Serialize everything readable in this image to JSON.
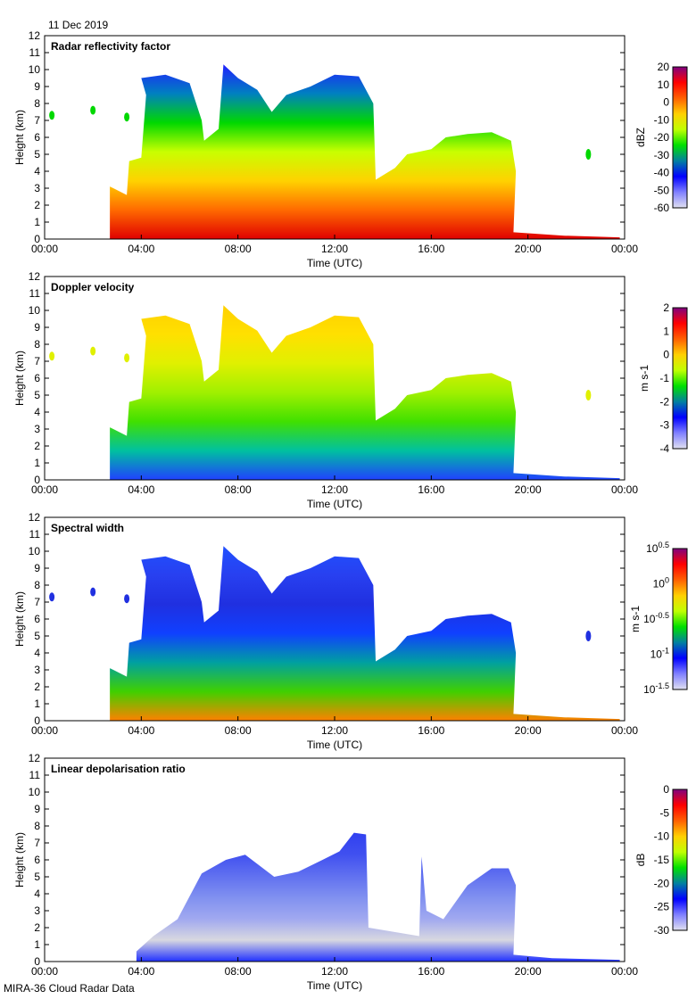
{
  "date": "11 Dec 2019",
  "footer": "MIRA-36 Cloud Radar Data",
  "chart_data": [
    {
      "type": "heatmap",
      "title": "Radar reflectivity factor",
      "xlabel": "Time (UTC)",
      "ylabel": "Height (km)",
      "xticks": [
        "00:00",
        "04:00",
        "08:00",
        "12:00",
        "16:00",
        "20:00",
        "00:00"
      ],
      "yticks": [
        "0",
        "1",
        "2",
        "3",
        "4",
        "5",
        "6",
        "7",
        "8",
        "9",
        "10",
        "11",
        "12"
      ],
      "ylim": [
        0,
        12
      ],
      "xlim": [
        0,
        24
      ],
      "colorbar": {
        "label": "dBZ",
        "ticks": [
          "20",
          "10",
          "0",
          "-10",
          "-20",
          "-30",
          "-40",
          "-50",
          "-60"
        ]
      },
      "colors": [
        "#e00000",
        "#ff6a00",
        "#ffd200",
        "#c8ff00",
        "#00d800",
        "#0080c0",
        "#2020ff"
      ]
    },
    {
      "type": "heatmap",
      "title": "Doppler velocity",
      "xlabel": "Time (UTC)",
      "ylabel": "Height (km)",
      "xticks": [
        "00:00",
        "04:00",
        "08:00",
        "12:00",
        "16:00",
        "20:00",
        "00:00"
      ],
      "yticks": [
        "0",
        "1",
        "2",
        "3",
        "4",
        "5",
        "6",
        "7",
        "8",
        "9",
        "10",
        "11",
        "12"
      ],
      "ylim": [
        0,
        12
      ],
      "xlim": [
        0,
        24
      ],
      "colorbar": {
        "label": "m s-1",
        "ticks": [
          "2",
          "1",
          "0",
          "-1",
          "-2",
          "-3",
          "-4"
        ]
      },
      "colors": [
        "#2040ff",
        "#00c0a0",
        "#40e000",
        "#a0f000",
        "#e0f000",
        "#ffe000",
        "#ffd000"
      ]
    },
    {
      "type": "heatmap",
      "title": "Spectral width",
      "xlabel": "Time (UTC)",
      "ylabel": "Height (km)",
      "xticks": [
        "00:00",
        "04:00",
        "08:00",
        "12:00",
        "16:00",
        "20:00",
        "00:00"
      ],
      "yticks": [
        "0",
        "1",
        "2",
        "3",
        "4",
        "5",
        "6",
        "7",
        "8",
        "9",
        "10",
        "11",
        "12"
      ],
      "ylim": [
        0,
        12
      ],
      "xlim": [
        0,
        24
      ],
      "colorbar": {
        "label": "m s-1",
        "ticks": [
          "10^0.5",
          "10^0",
          "10^-0.5",
          "10^-1",
          "10^-1.5"
        ]
      },
      "colors": [
        "#ff8000",
        "#40d000",
        "#00a0a0",
        "#1040ff",
        "#2030e0",
        "#2840f0",
        "#2050ff"
      ]
    },
    {
      "type": "heatmap",
      "title": "Linear depolarisation ratio",
      "xlabel": "Time (UTC)",
      "ylabel": "Height (km)",
      "xticks": [
        "00:00",
        "04:00",
        "08:00",
        "12:00",
        "16:00",
        "20:00",
        "00:00"
      ],
      "yticks": [
        "0",
        "1",
        "2",
        "3",
        "4",
        "5",
        "6",
        "7",
        "8",
        "9",
        "10",
        "11",
        "12"
      ],
      "ylim": [
        0,
        12
      ],
      "xlim": [
        0,
        24
      ],
      "colorbar": {
        "label": "dB",
        "ticks": [
          "0",
          "-5",
          "-10",
          "-15",
          "-20",
          "-25",
          "-30"
        ]
      },
      "colors": [
        "#2030ff",
        "#d8d8e0",
        "#a0a8f0",
        "#8090f0",
        "#6070f0",
        "#4050f0",
        "#3040f0"
      ]
    }
  ],
  "cloud_envelope_hours_km": [
    [
      2.7,
      0
    ],
    [
      2.7,
      3.1
    ],
    [
      3.4,
      2.6
    ],
    [
      3.5,
      4.6
    ],
    [
      4.0,
      4.8
    ],
    [
      4.2,
      8.5
    ],
    [
      4.0,
      9.5
    ],
    [
      5.0,
      9.7
    ],
    [
      6.0,
      9.2
    ],
    [
      6.5,
      7.0
    ],
    [
      6.6,
      5.8
    ],
    [
      7.2,
      6.5
    ],
    [
      7.4,
      10.3
    ],
    [
      8.0,
      9.5
    ],
    [
      8.8,
      8.8
    ],
    [
      9.4,
      7.5
    ],
    [
      10.0,
      8.5
    ],
    [
      11.0,
      9.0
    ],
    [
      12.0,
      9.7
    ],
    [
      13.0,
      9.6
    ],
    [
      13.6,
      8.0
    ],
    [
      13.7,
      3.5
    ],
    [
      14.5,
      4.2
    ],
    [
      15.0,
      5.0
    ],
    [
      16.0,
      5.3
    ],
    [
      16.6,
      6.0
    ],
    [
      17.5,
      6.2
    ],
    [
      18.5,
      6.3
    ],
    [
      19.3,
      5.8
    ],
    [
      19.5,
      4.0
    ],
    [
      19.4,
      0.4
    ],
    [
      21.5,
      0.2
    ],
    [
      23.8,
      0.1
    ],
    [
      23.8,
      0
    ]
  ],
  "ldr_envelope_hours_km": [
    [
      3.8,
      0
    ],
    [
      3.8,
      0.6
    ],
    [
      4.5,
      1.5
    ],
    [
      5.5,
      2.5
    ],
    [
      6.5,
      5.2
    ],
    [
      7.5,
      6.0
    ],
    [
      8.3,
      6.3
    ],
    [
      9.5,
      5.0
    ],
    [
      10.5,
      5.3
    ],
    [
      11.5,
      6.0
    ],
    [
      12.2,
      6.5
    ],
    [
      12.8,
      7.6
    ],
    [
      13.3,
      7.5
    ],
    [
      13.4,
      2.0
    ],
    [
      15.5,
      1.5
    ],
    [
      15.6,
      6.2
    ],
    [
      15.8,
      3.0
    ],
    [
      16.5,
      2.5
    ],
    [
      17.5,
      4.5
    ],
    [
      18.5,
      5.5
    ],
    [
      19.2,
      5.5
    ],
    [
      19.5,
      4.5
    ],
    [
      19.4,
      0.4
    ],
    [
      21.0,
      0.2
    ],
    [
      23.8,
      0.1
    ],
    [
      23.8,
      0
    ]
  ]
}
